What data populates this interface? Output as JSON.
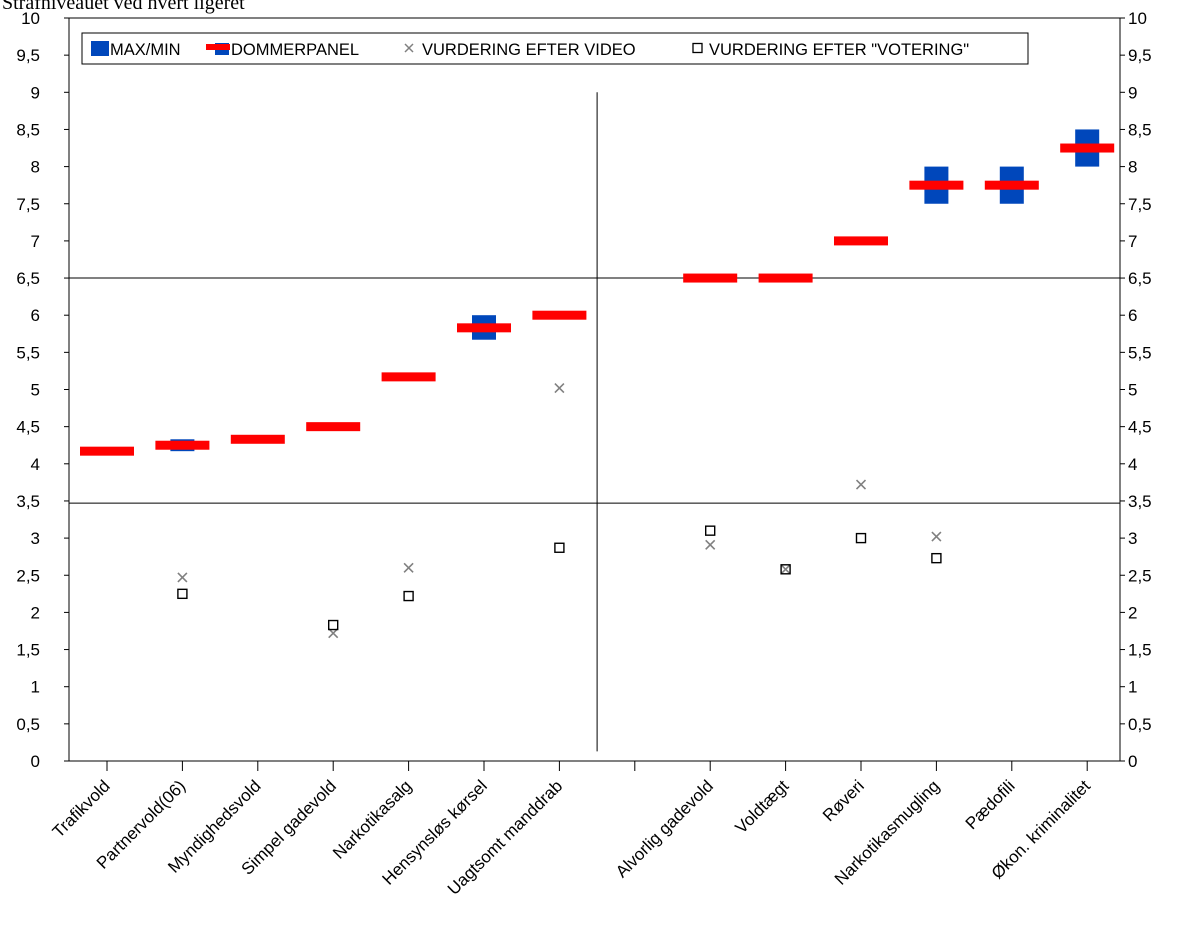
{
  "caption": "Strafniveauet ved hvert ligeret",
  "chart_data": {
    "type": "scatter",
    "title": "",
    "xlabel": "",
    "ylabel": "",
    "ylim": [
      0,
      10
    ],
    "ytick_step": 0.5,
    "decimal_separator": ",",
    "grid": false,
    "legend_position": "top-left",
    "reference_lines": {
      "horizontal": [
        6.5,
        3.47
      ],
      "vertical_after_category_index": 6
    },
    "categories": [
      "Trafikvold",
      "Partnervold(06)",
      "Myndighedsvold",
      "Simpel gadevold",
      "Narkotikasalg",
      "Hensynsløs kørsel",
      "Uagtsomt manddrab",
      "",
      "Alvorlig gadevold",
      "Voldtægt",
      "Røveri",
      "Narkotikasmugling",
      "Pædofili",
      "Økon. kriminalitet"
    ],
    "series": [
      {
        "name": "MAX/MIN",
        "kind": "range",
        "color": "#0047bb",
        "ranges": [
          null,
          [
            4.17,
            4.33
          ],
          null,
          null,
          null,
          [
            5.67,
            6.0
          ],
          null,
          null,
          null,
          null,
          null,
          [
            7.5,
            8.0
          ],
          [
            7.5,
            8.0
          ],
          [
            8.0,
            8.5
          ]
        ]
      },
      {
        "name": "DOMMERPANEL",
        "kind": "dash",
        "color": "#ff0000",
        "values": [
          4.17,
          4.25,
          4.33,
          4.5,
          5.17,
          5.83,
          6.0,
          null,
          6.5,
          6.5,
          7.0,
          7.75,
          7.75,
          8.25
        ]
      },
      {
        "name": "VURDERING EFTER VIDEO",
        "kind": "x",
        "color": "#808080",
        "values": [
          null,
          2.47,
          null,
          1.72,
          2.6,
          null,
          5.02,
          null,
          2.91,
          2.58,
          3.72,
          3.02,
          null,
          null
        ]
      },
      {
        "name": "VURDERING EFTER \"VOTERING\"",
        "kind": "square",
        "color": "#000000",
        "values": [
          null,
          2.25,
          null,
          1.83,
          2.22,
          null,
          2.87,
          null,
          3.1,
          2.58,
          3.0,
          2.73,
          null,
          null
        ]
      }
    ]
  }
}
